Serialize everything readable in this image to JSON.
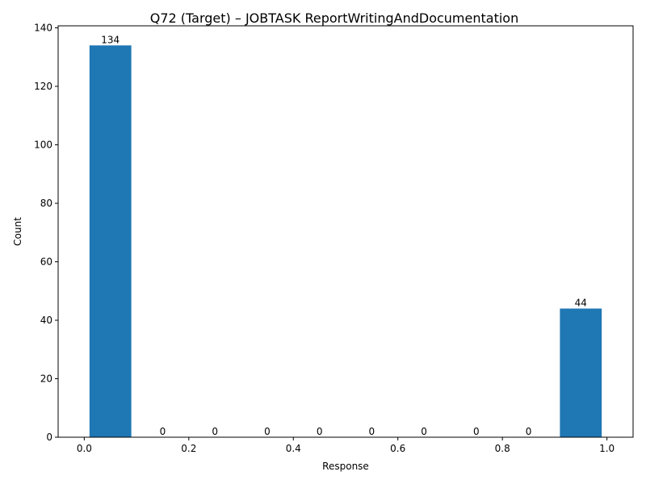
{
  "chart_data": {
    "type": "bar",
    "title": "Q72 (Target) – JOBTASK ReportWritingAndDocumentation",
    "xlabel": "Response",
    "ylabel": "Count",
    "bins": [
      {
        "x0": 0.0,
        "x1": 0.1,
        "value": 134
      },
      {
        "x0": 0.1,
        "x1": 0.2,
        "value": 0
      },
      {
        "x0": 0.2,
        "x1": 0.3,
        "value": 0
      },
      {
        "x0": 0.3,
        "x1": 0.4,
        "value": 0
      },
      {
        "x0": 0.4,
        "x1": 0.5,
        "value": 0
      },
      {
        "x0": 0.5,
        "x1": 0.6,
        "value": 0
      },
      {
        "x0": 0.6,
        "x1": 0.7,
        "value": 0
      },
      {
        "x0": 0.7,
        "x1": 0.8,
        "value": 0
      },
      {
        "x0": 0.8,
        "x1": 0.9,
        "value": 0
      },
      {
        "x0": 0.9,
        "x1": 1.0,
        "value": 44
      }
    ],
    "data_labels": [
      "134",
      "0",
      "0",
      "0",
      "0",
      "0",
      "0",
      "0",
      "0",
      "44"
    ],
    "xlim": [
      -0.05,
      1.05
    ],
    "ylim": [
      0,
      140.7
    ],
    "xticks": [
      0.0,
      0.2,
      0.4,
      0.6,
      0.8,
      1.0
    ],
    "xtick_labels": [
      "0.0",
      "0.2",
      "0.4",
      "0.6",
      "0.8",
      "1.0"
    ],
    "yticks": [
      0,
      20,
      40,
      60,
      80,
      100,
      120,
      140
    ],
    "ytick_labels": [
      "0",
      "20",
      "40",
      "60",
      "80",
      "100",
      "120",
      "140"
    ],
    "grid": false,
    "bar_color": "#1f77b4"
  }
}
